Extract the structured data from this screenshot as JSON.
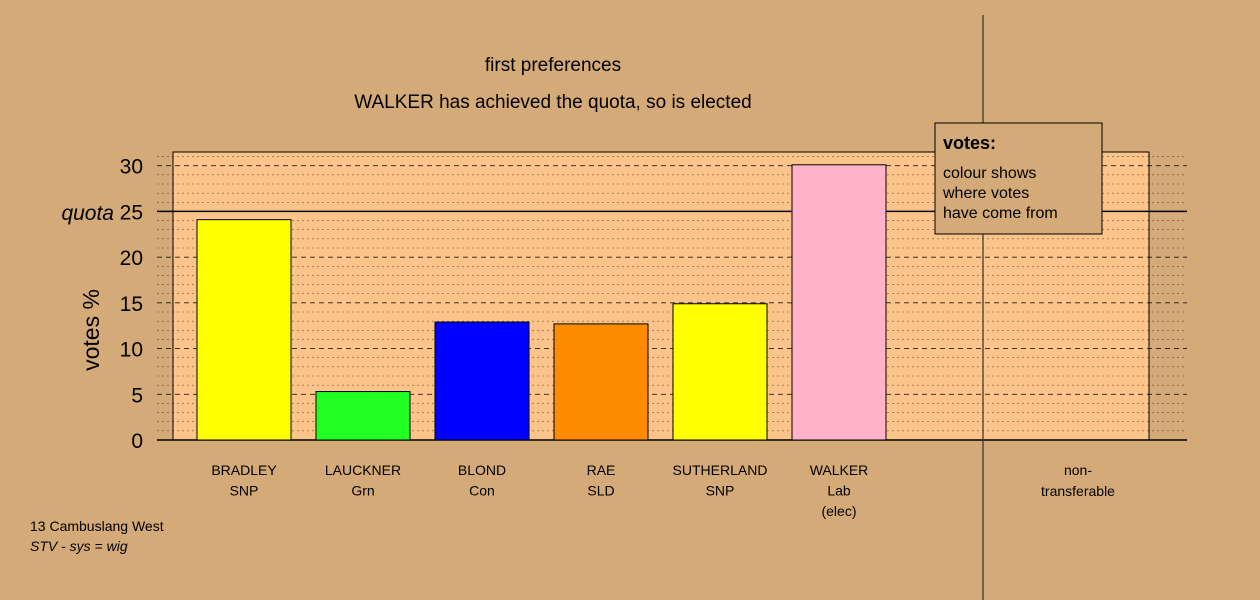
{
  "chart_data": {
    "type": "bar",
    "title": "first preferences",
    "subtitle": "WALKER has achieved the quota, so is elected",
    "ylabel": "votes %",
    "ylim": [
      0,
      31.5
    ],
    "yticks": [
      0,
      5,
      10,
      15,
      20,
      25,
      30
    ],
    "quota": 25,
    "quota_label": "quota",
    "grid": true,
    "candidates": [
      {
        "name": "BRADLEY",
        "party": "SNP",
        "note": "",
        "value": 24.1,
        "color": "#ffff00"
      },
      {
        "name": "LAUCKNER",
        "party": "Grn",
        "note": "",
        "value": 5.3,
        "color": "#22ff22"
      },
      {
        "name": "BLOND",
        "party": "Con",
        "note": "",
        "value": 12.9,
        "color": "#0000ff"
      },
      {
        "name": "RAE",
        "party": "SLD",
        "note": "",
        "value": 12.7,
        "color": "#ff8c00"
      },
      {
        "name": "SUTHERLAND",
        "party": "SNP",
        "note": "",
        "value": 14.9,
        "color": "#ffff00"
      },
      {
        "name": "WALKER",
        "party": "Lab",
        "note": "(elec)",
        "value": 30.1,
        "color": "#ffb2c8"
      }
    ],
    "nontransferable": {
      "line1": "non-",
      "line2": "transferable",
      "value": 0
    },
    "legend": {
      "title": "votes:",
      "lines": [
        "colour shows",
        "where votes",
        "have come from"
      ],
      "placement": "top-right"
    }
  },
  "footer": {
    "ward": "13 Cambuslang West",
    "system": "STV - sys = wig"
  },
  "colors": {
    "background": "#d4aa78",
    "plot_area": "#fcc48a"
  }
}
